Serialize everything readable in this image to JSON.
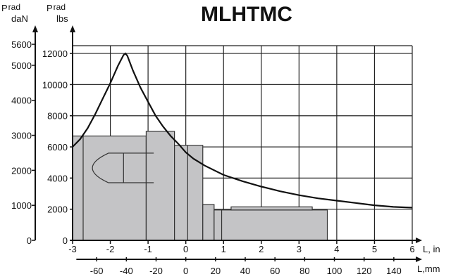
{
  "chart_data": {
    "type": "line",
    "title": "MLHTMC",
    "y_left": {
      "label_main": "P",
      "label_sub": "rad",
      "unit": "daN",
      "ticks": [
        0,
        1000,
        2000,
        3000,
        4000,
        5000,
        5600
      ],
      "tick_labels": [
        "0",
        "1000",
        "2000",
        "3000",
        "4000",
        "5000",
        "5600"
      ]
    },
    "y_right": {
      "label_main": "P",
      "label_sub": "rad",
      "unit": "lbs",
      "ticks": [
        0,
        2000,
        4000,
        6000,
        8000,
        10000,
        12000
      ],
      "tick_labels": [
        "0",
        "2000",
        "4000",
        "6000",
        "8000",
        "10000",
        "12000"
      ],
      "ylim": [
        0,
        12500
      ]
    },
    "x_in": {
      "label": "L, in",
      "ticks": [
        -3,
        -2,
        -1,
        0,
        1,
        2,
        3,
        4,
        5,
        6
      ],
      "tick_labels": [
        "-3",
        "-2",
        "-1",
        "0",
        "1",
        "2",
        "3",
        "4",
        "5",
        "6"
      ],
      "xlim": [
        -3,
        6
      ]
    },
    "x_mm": {
      "label": "L,mm",
      "ticks": [
        -60,
        -40,
        -20,
        0,
        20,
        40,
        60,
        80,
        100,
        120,
        140
      ],
      "tick_labels": [
        "-60",
        "-40",
        "-20",
        "0",
        "20",
        "40",
        "60",
        "80",
        "100",
        "120",
        "140"
      ]
    },
    "grid": true,
    "series": [
      {
        "x": [
          -3.0,
          -2.8,
          -2.6,
          -2.4,
          -2.2,
          -2.0,
          -1.8,
          -1.65,
          -1.6,
          -1.55,
          -1.4,
          -1.2,
          -1.0,
          -0.8,
          -0.6,
          -0.4,
          -0.2,
          0.0,
          0.2,
          0.5,
          1.0,
          1.5,
          2.0,
          2.5,
          3.0,
          3.5,
          4.0,
          4.5,
          5.0,
          5.5,
          6.0
        ],
        "y": [
          6000,
          6500,
          7200,
          8100,
          9100,
          10100,
          11200,
          11900,
          12000,
          11850,
          10900,
          9800,
          8900,
          8000,
          7300,
          6700,
          6200,
          5650,
          5250,
          4800,
          4200,
          3800,
          3450,
          3150,
          2900,
          2700,
          2550,
          2400,
          2250,
          2150,
          2100
        ]
      }
    ]
  }
}
